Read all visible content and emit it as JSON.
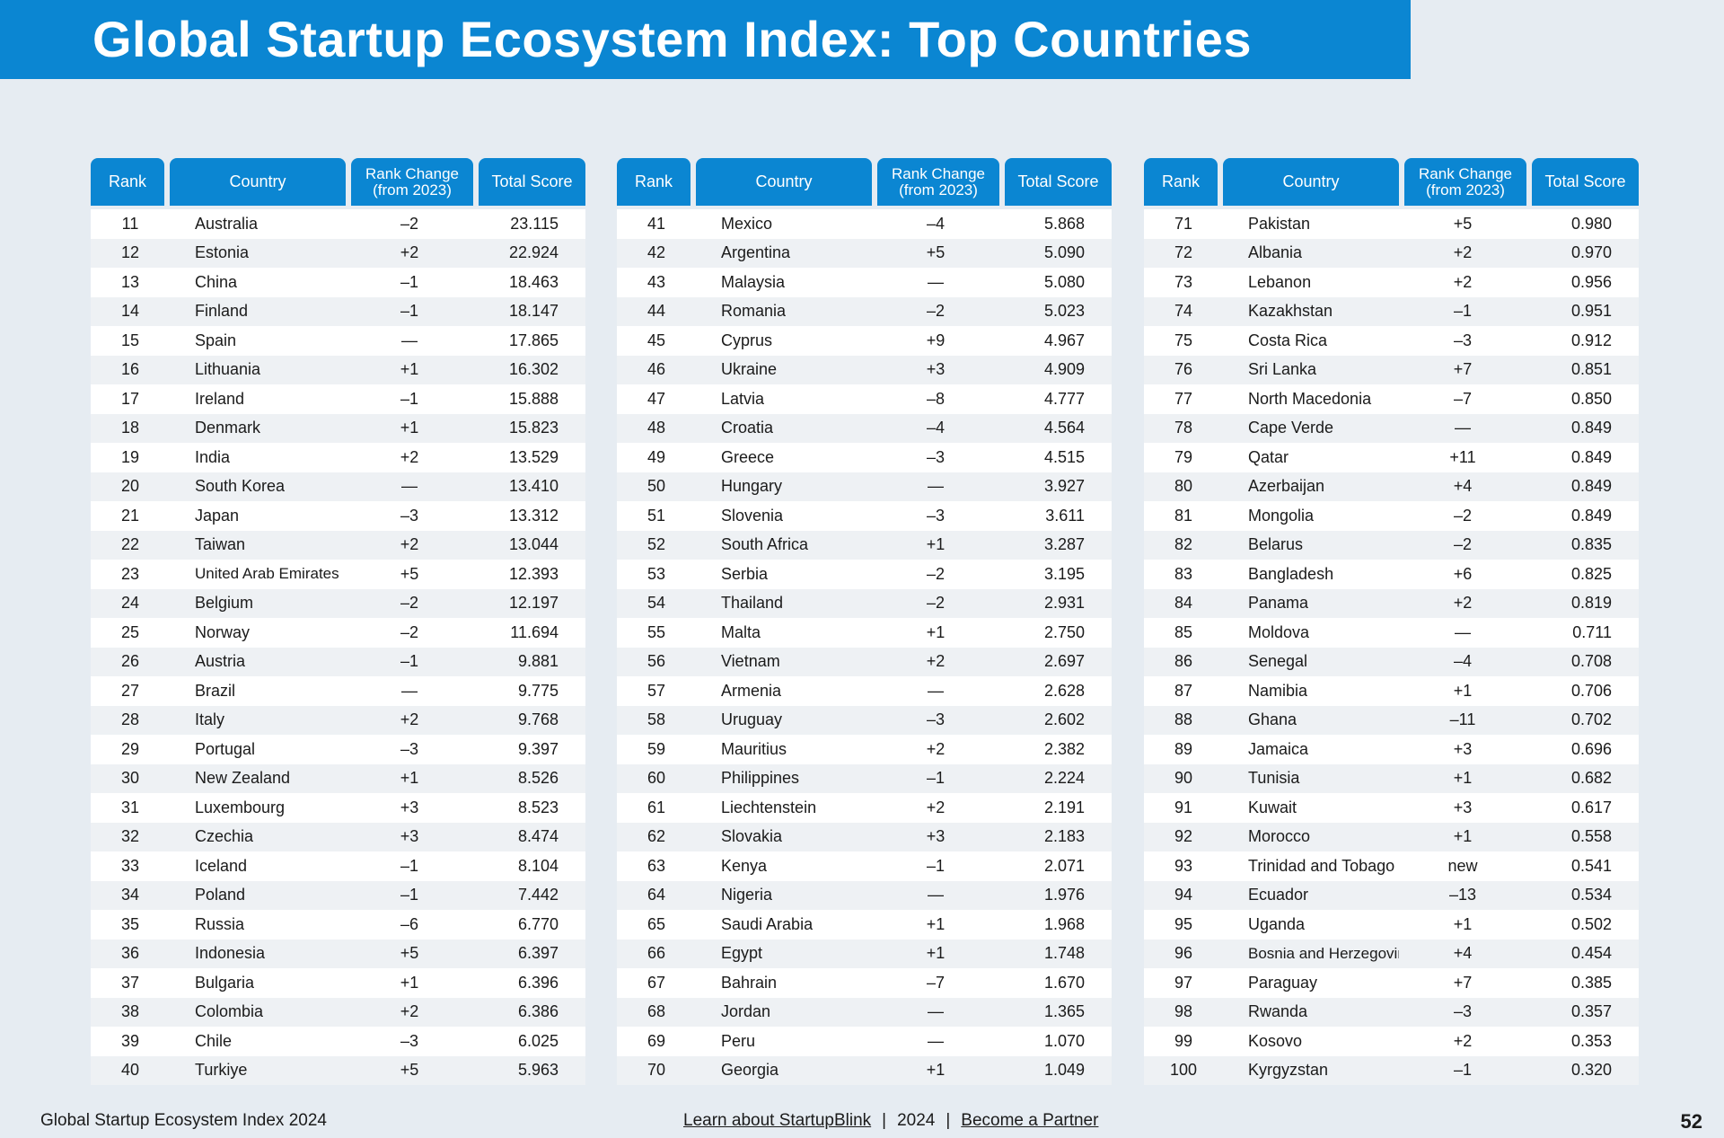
{
  "title": "Global Startup Ecosystem Index: Top Countries",
  "columns": {
    "rank": "Rank",
    "country": "Country",
    "rank_change": "Rank Change (from 2023)",
    "total_score": "Total Score"
  },
  "tables": [
    {
      "rows": [
        {
          "rank": "11",
          "country": "Australia",
          "change": "–2",
          "score": "23.115"
        },
        {
          "rank": "12",
          "country": "Estonia",
          "change": "+2",
          "score": "22.924"
        },
        {
          "rank": "13",
          "country": "China",
          "change": "–1",
          "score": "18.463"
        },
        {
          "rank": "14",
          "country": "Finland",
          "change": "–1",
          "score": "18.147"
        },
        {
          "rank": "15",
          "country": "Spain",
          "change": "—",
          "score": "17.865"
        },
        {
          "rank": "16",
          "country": "Lithuania",
          "change": "+1",
          "score": "16.302"
        },
        {
          "rank": "17",
          "country": "Ireland",
          "change": "–1",
          "score": "15.888"
        },
        {
          "rank": "18",
          "country": "Denmark",
          "change": "+1",
          "score": "15.823"
        },
        {
          "rank": "19",
          "country": "India",
          "change": "+2",
          "score": "13.529"
        },
        {
          "rank": "20",
          "country": "South Korea",
          "change": "—",
          "score": "13.410"
        },
        {
          "rank": "21",
          "country": "Japan",
          "change": "–3",
          "score": "13.312"
        },
        {
          "rank": "22",
          "country": "Taiwan",
          "change": "+2",
          "score": "13.044"
        },
        {
          "rank": "23",
          "country": "United Arab Emirates",
          "change": "+5",
          "score": "12.393"
        },
        {
          "rank": "24",
          "country": "Belgium",
          "change": "–2",
          "score": "12.197"
        },
        {
          "rank": "25",
          "country": "Norway",
          "change": "–2",
          "score": "11.694"
        },
        {
          "rank": "26",
          "country": "Austria",
          "change": "–1",
          "score": "9.881"
        },
        {
          "rank": "27",
          "country": "Brazil",
          "change": "—",
          "score": "9.775"
        },
        {
          "rank": "28",
          "country": "Italy",
          "change": "+2",
          "score": "9.768"
        },
        {
          "rank": "29",
          "country": "Portugal",
          "change": "–3",
          "score": "9.397"
        },
        {
          "rank": "30",
          "country": "New Zealand",
          "change": "+1",
          "score": "8.526"
        },
        {
          "rank": "31",
          "country": "Luxembourg",
          "change": "+3",
          "score": "8.523"
        },
        {
          "rank": "32",
          "country": "Czechia",
          "change": "+3",
          "score": "8.474"
        },
        {
          "rank": "33",
          "country": "Iceland",
          "change": "–1",
          "score": "8.104"
        },
        {
          "rank": "34",
          "country": "Poland",
          "change": "–1",
          "score": "7.442"
        },
        {
          "rank": "35",
          "country": "Russia",
          "change": "–6",
          "score": "6.770"
        },
        {
          "rank": "36",
          "country": "Indonesia",
          "change": "+5",
          "score": "6.397"
        },
        {
          "rank": "37",
          "country": "Bulgaria",
          "change": "+1",
          "score": "6.396"
        },
        {
          "rank": "38",
          "country": "Colombia",
          "change": "+2",
          "score": "6.386"
        },
        {
          "rank": "39",
          "country": "Chile",
          "change": "–3",
          "score": "6.025"
        },
        {
          "rank": "40",
          "country": "Turkiye",
          "change": "+5",
          "score": "5.963"
        }
      ]
    },
    {
      "rows": [
        {
          "rank": "41",
          "country": "Mexico",
          "change": "–4",
          "score": "5.868"
        },
        {
          "rank": "42",
          "country": "Argentina",
          "change": "+5",
          "score": "5.090"
        },
        {
          "rank": "43",
          "country": "Malaysia",
          "change": "—",
          "score": "5.080"
        },
        {
          "rank": "44",
          "country": "Romania",
          "change": "–2",
          "score": "5.023"
        },
        {
          "rank": "45",
          "country": "Cyprus",
          "change": "+9",
          "score": "4.967"
        },
        {
          "rank": "46",
          "country": "Ukraine",
          "change": "+3",
          "score": "4.909"
        },
        {
          "rank": "47",
          "country": "Latvia",
          "change": "–8",
          "score": "4.777"
        },
        {
          "rank": "48",
          "country": "Croatia",
          "change": "–4",
          "score": "4.564"
        },
        {
          "rank": "49",
          "country": "Greece",
          "change": "–3",
          "score": "4.515"
        },
        {
          "rank": "50",
          "country": "Hungary",
          "change": "—",
          "score": "3.927"
        },
        {
          "rank": "51",
          "country": "Slovenia",
          "change": "–3",
          "score": "3.611"
        },
        {
          "rank": "52",
          "country": "South Africa",
          "change": "+1",
          "score": "3.287"
        },
        {
          "rank": "53",
          "country": "Serbia",
          "change": "–2",
          "score": "3.195"
        },
        {
          "rank": "54",
          "country": "Thailand",
          "change": "–2",
          "score": "2.931"
        },
        {
          "rank": "55",
          "country": "Malta",
          "change": "+1",
          "score": "2.750"
        },
        {
          "rank": "56",
          "country": "Vietnam",
          "change": "+2",
          "score": "2.697"
        },
        {
          "rank": "57",
          "country": "Armenia",
          "change": "—",
          "score": "2.628"
        },
        {
          "rank": "58",
          "country": "Uruguay",
          "change": "–3",
          "score": "2.602"
        },
        {
          "rank": "59",
          "country": "Mauritius",
          "change": "+2",
          "score": "2.382"
        },
        {
          "rank": "60",
          "country": "Philippines",
          "change": "–1",
          "score": "2.224"
        },
        {
          "rank": "61",
          "country": "Liechtenstein",
          "change": "+2",
          "score": "2.191"
        },
        {
          "rank": "62",
          "country": "Slovakia",
          "change": "+3",
          "score": "2.183"
        },
        {
          "rank": "63",
          "country": "Kenya",
          "change": "–1",
          "score": "2.071"
        },
        {
          "rank": "64",
          "country": "Nigeria",
          "change": "—",
          "score": "1.976"
        },
        {
          "rank": "65",
          "country": "Saudi Arabia",
          "change": "+1",
          "score": "1.968"
        },
        {
          "rank": "66",
          "country": "Egypt",
          "change": "+1",
          "score": "1.748"
        },
        {
          "rank": "67",
          "country": "Bahrain",
          "change": "–7",
          "score": "1.670"
        },
        {
          "rank": "68",
          "country": "Jordan",
          "change": "—",
          "score": "1.365"
        },
        {
          "rank": "69",
          "country": "Peru",
          "change": "—",
          "score": "1.070"
        },
        {
          "rank": "70",
          "country": "Georgia",
          "change": "+1",
          "score": "1.049"
        }
      ]
    },
    {
      "rows": [
        {
          "rank": "71",
          "country": "Pakistan",
          "change": "+5",
          "score": "0.980"
        },
        {
          "rank": "72",
          "country": "Albania",
          "change": "+2",
          "score": "0.970"
        },
        {
          "rank": "73",
          "country": "Lebanon",
          "change": "+2",
          "score": "0.956"
        },
        {
          "rank": "74",
          "country": "Kazakhstan",
          "change": "–1",
          "score": "0.951"
        },
        {
          "rank": "75",
          "country": "Costa Rica",
          "change": "–3",
          "score": "0.912"
        },
        {
          "rank": "76",
          "country": "Sri Lanka",
          "change": "+7",
          "score": "0.851"
        },
        {
          "rank": "77",
          "country": "North Macedonia",
          "change": "–7",
          "score": "0.850"
        },
        {
          "rank": "78",
          "country": "Cape Verde",
          "change": "—",
          "score": "0.849"
        },
        {
          "rank": "79",
          "country": "Qatar",
          "change": "+11",
          "score": "0.849"
        },
        {
          "rank": "80",
          "country": "Azerbaijan",
          "change": "+4",
          "score": "0.849"
        },
        {
          "rank": "81",
          "country": "Mongolia",
          "change": "–2",
          "score": "0.849"
        },
        {
          "rank": "82",
          "country": "Belarus",
          "change": "–2",
          "score": "0.835"
        },
        {
          "rank": "83",
          "country": "Bangladesh",
          "change": "+6",
          "score": "0.825"
        },
        {
          "rank": "84",
          "country": "Panama",
          "change": "+2",
          "score": "0.819"
        },
        {
          "rank": "85",
          "country": "Moldova",
          "change": "—",
          "score": "0.711"
        },
        {
          "rank": "86",
          "country": "Senegal",
          "change": "–4",
          "score": "0.708"
        },
        {
          "rank": "87",
          "country": "Namibia",
          "change": "+1",
          "score": "0.706"
        },
        {
          "rank": "88",
          "country": "Ghana",
          "change": "–11",
          "score": "0.702"
        },
        {
          "rank": "89",
          "country": "Jamaica",
          "change": "+3",
          "score": "0.696"
        },
        {
          "rank": "90",
          "country": "Tunisia",
          "change": "+1",
          "score": "0.682"
        },
        {
          "rank": "91",
          "country": "Kuwait",
          "change": "+3",
          "score": "0.617"
        },
        {
          "rank": "92",
          "country": "Morocco",
          "change": "+1",
          "score": "0.558"
        },
        {
          "rank": "93",
          "country": "Trinidad and Tobago",
          "change": "new",
          "score": "0.541"
        },
        {
          "rank": "94",
          "country": "Ecuador",
          "change": "–13",
          "score": "0.534"
        },
        {
          "rank": "95",
          "country": "Uganda",
          "change": "+1",
          "score": "0.502"
        },
        {
          "rank": "96",
          "country": "Bosnia and Herzegovina",
          "change": "+4",
          "score": "0.454"
        },
        {
          "rank": "97",
          "country": "Paraguay",
          "change": "+7",
          "score": "0.385"
        },
        {
          "rank": "98",
          "country": "Rwanda",
          "change": "–3",
          "score": "0.357"
        },
        {
          "rank": "99",
          "country": "Kosovo",
          "change": "+2",
          "score": "0.353"
        },
        {
          "rank": "100",
          "country": "Kyrgyzstan",
          "change": "–1",
          "score": "0.320"
        }
      ]
    }
  ],
  "footer": {
    "left": "Global Startup Ecosystem Index 2024",
    "link_learn": "Learn about StartupBlink",
    "separator": "|",
    "year": "2024",
    "link_partner": "Become a Partner",
    "page_number": "52"
  },
  "colors": {
    "brand_blue": "#0b86d2",
    "page_background": "#e6ecf2"
  }
}
